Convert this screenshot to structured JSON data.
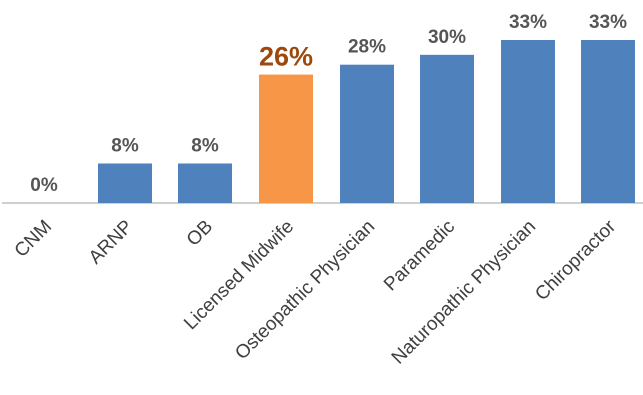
{
  "chart_data": {
    "type": "bar",
    "title": "",
    "xlabel": "",
    "ylabel": "",
    "categories": [
      "CNM",
      "ARNP",
      "OB",
      "Licensed Midwife",
      "Osteopathic Physician",
      "Paramedic",
      "Naturopathic Physician",
      "Chiropractor"
    ],
    "values": [
      0,
      8,
      8,
      26,
      28,
      30,
      33,
      33
    ],
    "value_labels": [
      "0%",
      "8%",
      "8%",
      "26%",
      "28%",
      "30%",
      "33%",
      "33%"
    ],
    "highlight_index": 3,
    "ylim": [
      0,
      33
    ],
    "grid": false,
    "legend": "none",
    "colors": {
      "bar": "#4f81bd",
      "highlight": "#f79646",
      "highlight_label": "#9e480e",
      "label": "#555555",
      "axis": "#bfbfbf"
    }
  }
}
